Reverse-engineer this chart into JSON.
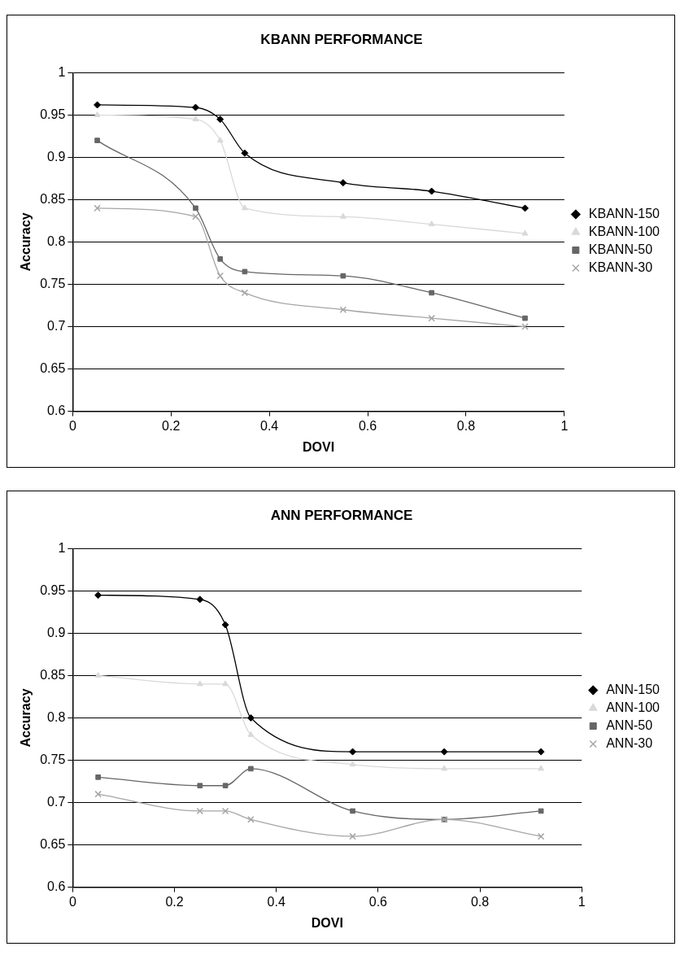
{
  "chart_data": [
    {
      "type": "line",
      "title": "KBANN PERFORMANCE",
      "xlabel": "DOVI",
      "ylabel": "Accuracy",
      "x": [
        0.05,
        0.25,
        0.3,
        0.35,
        0.55,
        0.73,
        0.92
      ],
      "xlim": [
        0,
        1
      ],
      "xticks": [
        0,
        0.2,
        0.4,
        0.6,
        0.8,
        1
      ],
      "ylim": [
        0.6,
        1
      ],
      "yticks": [
        0.6,
        0.65,
        0.7,
        0.75,
        0.8,
        0.85,
        0.9,
        0.95,
        1
      ],
      "grid": "y",
      "legend": "right",
      "series": [
        {
          "name": "KBANN-150",
          "color": "#000000",
          "marker": "diamond",
          "values": [
            0.962,
            0.959,
            0.945,
            0.905,
            0.87,
            0.86,
            0.84
          ]
        },
        {
          "name": "KBANN-100",
          "color": "#d9d9d9",
          "marker": "triangle",
          "values": [
            0.95,
            0.945,
            0.92,
            0.84,
            0.83,
            0.821,
            0.81
          ]
        },
        {
          "name": "KBANN-50",
          "color": "#666666",
          "marker": "square",
          "values": [
            0.92,
            0.84,
            0.78,
            0.765,
            0.76,
            0.74,
            0.71
          ]
        },
        {
          "name": "KBANN-30",
          "color": "#a6a6a6",
          "marker": "cross",
          "values": [
            0.84,
            0.83,
            0.76,
            0.74,
            0.72,
            0.71,
            0.7
          ]
        }
      ]
    },
    {
      "type": "line",
      "title": "ANN PERFORMANCE",
      "xlabel": "DOVI",
      "ylabel": "Accuracy",
      "x": [
        0.05,
        0.25,
        0.3,
        0.35,
        0.55,
        0.73,
        0.92
      ],
      "xlim": [
        0,
        1
      ],
      "xticks": [
        0,
        0.2,
        0.4,
        0.6,
        0.8,
        1
      ],
      "ylim": [
        0.6,
        1
      ],
      "yticks": [
        0.6,
        0.65,
        0.7,
        0.75,
        0.8,
        0.85,
        0.9,
        0.95,
        1
      ],
      "grid": "y",
      "legend": "right",
      "series": [
        {
          "name": "ANN-150",
          "color": "#000000",
          "marker": "diamond",
          "values": [
            0.945,
            0.94,
            0.91,
            0.8,
            0.76,
            0.76,
            0.76
          ]
        },
        {
          "name": "ANN-100",
          "color": "#d9d9d9",
          "marker": "triangle",
          "values": [
            0.85,
            0.84,
            0.84,
            0.78,
            0.745,
            0.74,
            0.74
          ]
        },
        {
          "name": "ANN-50",
          "color": "#666666",
          "marker": "square",
          "values": [
            0.73,
            0.72,
            0.72,
            0.74,
            0.69,
            0.68,
            0.69
          ]
        },
        {
          "name": "ANN-30",
          "color": "#a6a6a6",
          "marker": "cross",
          "values": [
            0.71,
            0.69,
            0.69,
            0.68,
            0.66,
            0.68,
            0.66
          ]
        }
      ]
    }
  ]
}
